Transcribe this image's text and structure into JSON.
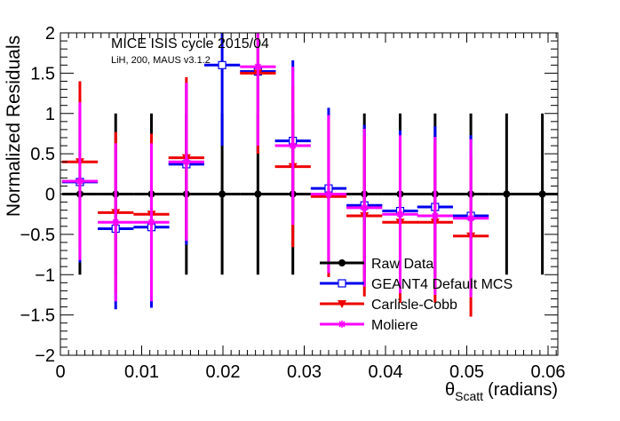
{
  "chart_data": {
    "type": "errorbar",
    "title": "MICE ISIS cycle 2015/04",
    "subtitle": "LiH, 200, MAUS v3.1.2",
    "y_label": "Normalized Residuals",
    "x_label": "θ",
    "x_label_sub": "Scatt",
    "x_label_unit": "(radians)",
    "x": [
      0.0024,
      0.0068,
      0.0112,
      0.0155,
      0.0199,
      0.0243,
      0.0286,
      0.033,
      0.0374,
      0.0418,
      0.0461,
      0.0505,
      0.0549,
      0.0593
    ],
    "series": [
      {
        "name": "Raw Data",
        "color": "#000000",
        "marker": "circle",
        "values": [
          0,
          0,
          0,
          0,
          0,
          0,
          0,
          0,
          0,
          0,
          0,
          0,
          0,
          0
        ],
        "errors": [
          1,
          1,
          1,
          1,
          1,
          1,
          1,
          1,
          1,
          1,
          1,
          1,
          1,
          1
        ]
      },
      {
        "name": "GEANT4 Default MCS",
        "color": "#0000ee",
        "marker": "open-square",
        "values": [
          0.15,
          -0.43,
          -0.41,
          0.37,
          1.6,
          1.52,
          0.66,
          0.07,
          -0.14,
          -0.21,
          -0.16,
          -0.27,
          null,
          null
        ],
        "errors": [
          1.0,
          1.0,
          1.0,
          1.0,
          1.0,
          1.0,
          1.0,
          1.0,
          1.0,
          1.0,
          1.0,
          1.0,
          null,
          null
        ]
      },
      {
        "name": "Carlisle-Cobb",
        "color": "#ee0000",
        "marker": "triangle-down",
        "values": [
          0.4,
          -0.23,
          -0.25,
          0.45,
          null,
          1.5,
          0.34,
          -0.03,
          -0.27,
          -0.35,
          -0.35,
          -0.52,
          null,
          null
        ],
        "errors": [
          1.0,
          1.0,
          1.0,
          1.0,
          null,
          1.0,
          1.0,
          1.0,
          1.0,
          1.0,
          1.0,
          1.0,
          null,
          null
        ]
      },
      {
        "name": "Moliere",
        "color": "#ff00ff",
        "marker": "star",
        "values": [
          0.16,
          -0.35,
          -0.35,
          0.4,
          null,
          1.58,
          0.6,
          0.0,
          -0.17,
          -0.25,
          -0.27,
          -0.3,
          null,
          null
        ],
        "errors": [
          0.98,
          0.98,
          0.98,
          0.98,
          null,
          0.98,
          0.98,
          0.98,
          0.98,
          0.98,
          0.98,
          0.98,
          null,
          null
        ]
      }
    ],
    "xlim": [
      0,
      0.0612
    ],
    "ylim": [
      -2,
      2
    ],
    "xticks": [
      0,
      0.01,
      0.02,
      0.03,
      0.04,
      0.05,
      0.06
    ],
    "yticks": [
      {
        "value": -2,
        "label": "−2"
      },
      {
        "value": -1.5,
        "label": "−1.5"
      },
      {
        "value": -1,
        "label": "−1"
      },
      {
        "value": -0.5,
        "label": "−0.5"
      },
      0,
      0.5,
      1,
      1.5,
      2
    ],
    "legend": "bottom-right"
  }
}
